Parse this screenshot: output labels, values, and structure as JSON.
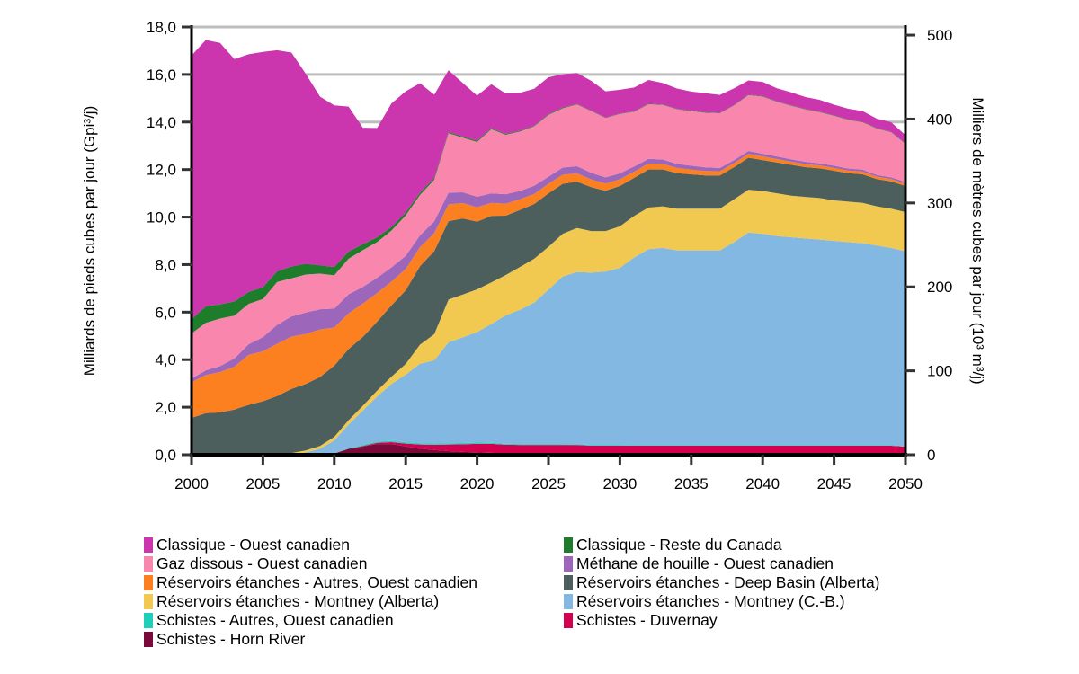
{
  "chart_data": {
    "type": "area",
    "stacked": true,
    "title": "",
    "xlabel": "",
    "ylabel": "Milliards de pieds cubes par jour (Gpi³/j)",
    "y2label": "Milliers de mètres cubes par jour (10³ m³/j)",
    "xlim": [
      2000,
      2050
    ],
    "ylim": [
      0,
      18
    ],
    "y2lim": [
      0,
      500
    ],
    "x_ticks": [
      "2000",
      "2005",
      "2010",
      "2015",
      "2020",
      "2025",
      "2030",
      "2035",
      "2040",
      "2045",
      "2050"
    ],
    "y_ticks": [
      "0,0",
      "2,0",
      "4,0",
      "6,0",
      "8,0",
      "10,0",
      "12,0",
      "14,0",
      "16,0",
      "18,0"
    ],
    "y2_ticks": [
      "0",
      "100",
      "200",
      "300",
      "400",
      "500"
    ],
    "grid": "horizontal",
    "legend_position": "bottom",
    "x": [
      2000,
      2001,
      2002,
      2003,
      2004,
      2005,
      2006,
      2007,
      2008,
      2009,
      2010,
      2011,
      2012,
      2013,
      2014,
      2015,
      2016,
      2017,
      2018,
      2019,
      2020,
      2021,
      2022,
      2023,
      2024,
      2025,
      2026,
      2027,
      2028,
      2029,
      2030,
      2031,
      2032,
      2033,
      2034,
      2035,
      2036,
      2037,
      2038,
      2039,
      2040,
      2041,
      2042,
      2043,
      2044,
      2045,
      2046,
      2047,
      2048,
      2049,
      2050
    ],
    "series": [
      {
        "name": "Schistes - Horn River",
        "color": "#7b0a3a",
        "values": [
          0,
          0,
          0,
          0,
          0,
          0,
          0,
          0,
          0,
          0,
          0.05,
          0.25,
          0.35,
          0.45,
          0.45,
          0.35,
          0.25,
          0.2,
          0.15,
          0.12,
          0.1,
          0.08,
          0.06,
          0.05,
          0.05,
          0.05,
          0.05,
          0.05,
          0.04,
          0.04,
          0.04,
          0.04,
          0.04,
          0.04,
          0.04,
          0.04,
          0.04,
          0.04,
          0.04,
          0.04,
          0.04,
          0.04,
          0.04,
          0.04,
          0.04,
          0.04,
          0.04,
          0.04,
          0.04,
          0.04,
          0.04
        ]
      },
      {
        "name": "Schistes - Duvernay",
        "color": "#d4004f",
        "values": [
          0,
          0,
          0,
          0,
          0,
          0,
          0,
          0,
          0,
          0,
          0,
          0,
          0.02,
          0.05,
          0.08,
          0.12,
          0.18,
          0.22,
          0.28,
          0.32,
          0.36,
          0.38,
          0.36,
          0.36,
          0.36,
          0.36,
          0.36,
          0.36,
          0.34,
          0.34,
          0.34,
          0.34,
          0.34,
          0.34,
          0.34,
          0.34,
          0.34,
          0.34,
          0.34,
          0.34,
          0.34,
          0.34,
          0.34,
          0.34,
          0.34,
          0.34,
          0.34,
          0.34,
          0.34,
          0.34,
          0.3
        ]
      },
      {
        "name": "Schistes - Autres, Ouest canadien",
        "color": "#1fcfb8",
        "values": [
          0,
          0,
          0,
          0,
          0,
          0,
          0,
          0,
          0,
          0,
          0,
          0.02,
          0.04,
          0.05,
          0.05,
          0.05,
          0.05,
          0.05,
          0.05,
          0.05,
          0.05,
          0.04,
          0.04,
          0.04,
          0.04,
          0.04,
          0.04,
          0.03,
          0.03,
          0.03,
          0.03,
          0.02,
          0.02,
          0.02,
          0.02,
          0.02,
          0.02,
          0.02,
          0.02,
          0.02,
          0.02,
          0.02,
          0.02,
          0.02,
          0.02,
          0.02,
          0.02,
          0.02,
          0.02,
          0.02,
          0.02
        ]
      },
      {
        "name": "Réservoirs étanches - Montney (C.-B.)",
        "color": "#82b8e1",
        "values": [
          0,
          0,
          0,
          0,
          0,
          0,
          0,
          0.02,
          0.1,
          0.25,
          0.55,
          1.0,
          1.45,
          1.9,
          2.4,
          2.85,
          3.35,
          3.5,
          4.25,
          4.45,
          4.65,
          5.0,
          5.4,
          5.65,
          5.95,
          6.5,
          7.05,
          7.25,
          7.25,
          7.3,
          7.45,
          7.9,
          8.25,
          8.3,
          8.2,
          8.2,
          8.2,
          8.2,
          8.55,
          8.95,
          8.9,
          8.8,
          8.75,
          8.7,
          8.65,
          8.6,
          8.55,
          8.5,
          8.4,
          8.3,
          8.2
        ]
      },
      {
        "name": "Réservoirs étanches - Montney (Alberta)",
        "color": "#f1c951",
        "values": [
          0,
          0,
          0,
          0,
          0,
          0,
          0.02,
          0.05,
          0.08,
          0.12,
          0.15,
          0.18,
          0.2,
          0.25,
          0.3,
          0.45,
          0.8,
          1.1,
          1.8,
          1.8,
          1.8,
          1.75,
          1.7,
          1.8,
          1.85,
          1.8,
          1.8,
          1.85,
          1.75,
          1.7,
          1.75,
          1.75,
          1.75,
          1.75,
          1.75,
          1.75,
          1.75,
          1.75,
          1.8,
          1.8,
          1.8,
          1.8,
          1.75,
          1.75,
          1.75,
          1.7,
          1.7,
          1.7,
          1.65,
          1.65,
          1.65
        ]
      },
      {
        "name": "Réservoirs étanches - Deep Basin (Alberta)",
        "color": "#4c5f5c",
        "values": [
          1.55,
          1.75,
          1.78,
          1.9,
          2.1,
          2.25,
          2.45,
          2.7,
          2.8,
          2.9,
          3.0,
          3.0,
          2.9,
          2.9,
          3.0,
          3.1,
          3.3,
          3.5,
          3.3,
          3.2,
          2.85,
          2.8,
          2.5,
          2.4,
          2.3,
          2.25,
          2.1,
          1.95,
          1.85,
          1.7,
          1.7,
          1.6,
          1.6,
          1.55,
          1.5,
          1.45,
          1.4,
          1.4,
          1.35,
          1.35,
          1.3,
          1.3,
          1.3,
          1.25,
          1.25,
          1.25,
          1.2,
          1.2,
          1.15,
          1.15,
          1.1
        ]
      },
      {
        "name": "Réservoirs étanches - Autres, Ouest canadien",
        "color": "#fd8020",
        "values": [
          1.5,
          1.6,
          1.7,
          1.8,
          2.1,
          2.1,
          2.2,
          2.2,
          2.1,
          2.0,
          1.6,
          1.5,
          1.4,
          1.2,
          1.0,
          0.9,
          0.8,
          0.75,
          0.7,
          0.65,
          0.6,
          0.55,
          0.5,
          0.45,
          0.42,
          0.4,
          0.38,
          0.35,
          0.32,
          0.3,
          0.28,
          0.26,
          0.25,
          0.24,
          0.22,
          0.2,
          0.19,
          0.18,
          0.17,
          0.16,
          0.15,
          0.14,
          0.13,
          0.13,
          0.12,
          0.12,
          0.11,
          0.11,
          0.1,
          0.1,
          0.1
        ]
      },
      {
        "name": "Méthane de houille - Ouest canadien",
        "color": "#9c67bb",
        "values": [
          0.15,
          0.2,
          0.25,
          0.35,
          0.45,
          0.6,
          0.8,
          0.85,
          0.9,
          0.85,
          0.8,
          0.8,
          0.7,
          0.65,
          0.6,
          0.55,
          0.5,
          0.5,
          0.5,
          0.45,
          0.45,
          0.4,
          0.4,
          0.35,
          0.35,
          0.3,
          0.3,
          0.3,
          0.28,
          0.26,
          0.25,
          0.22,
          0.2,
          0.18,
          0.17,
          0.16,
          0.15,
          0.14,
          0.13,
          0.12,
          0.12,
          0.11,
          0.1,
          0.1,
          0.09,
          0.09,
          0.08,
          0.08,
          0.07,
          0.07,
          0.07
        ]
      },
      {
        "name": "Gaz dissous - Ouest canadien",
        "color": "#f987ad",
        "values": [
          1.9,
          2.0,
          2.0,
          1.8,
          1.7,
          1.6,
          1.8,
          1.6,
          1.6,
          1.5,
          1.4,
          1.5,
          1.55,
          1.5,
          1.55,
          1.7,
          1.7,
          1.75,
          2.5,
          2.3,
          2.3,
          2.7,
          2.5,
          2.5,
          2.5,
          2.6,
          2.5,
          2.6,
          2.6,
          2.5,
          2.5,
          2.3,
          2.3,
          2.3,
          2.3,
          2.3,
          2.3,
          2.3,
          2.3,
          2.35,
          2.4,
          2.3,
          2.25,
          2.2,
          2.15,
          2.1,
          2.05,
          2.0,
          1.95,
          1.9,
          1.6
        ]
      },
      {
        "name": "Classique - Reste du Canada",
        "color": "#1e7d2a",
        "values": [
          0.6,
          0.7,
          0.6,
          0.6,
          0.5,
          0.5,
          0.45,
          0.5,
          0.45,
          0.35,
          0.35,
          0.3,
          0.25,
          0.2,
          0.15,
          0.12,
          0.1,
          0.08,
          0.05,
          0.05,
          0.05,
          0.04,
          0.04,
          0.03,
          0.03,
          0.03,
          0.03,
          0.02,
          0.02,
          0.02,
          0.02,
          0.02,
          0.02,
          0.02,
          0.02,
          0.02,
          0.02,
          0.02,
          0.02,
          0.02,
          0.02,
          0.02,
          0.02,
          0.02,
          0.02,
          0.02,
          0.02,
          0.02,
          0.02,
          0.02,
          0.02
        ]
      },
      {
        "name": "Classique - Ouest canadien",
        "color": "#cb35ad",
        "values": [
          11.1,
          11.2,
          11.0,
          10.2,
          10.0,
          9.9,
          9.3,
          9.0,
          8.0,
          7.1,
          6.8,
          6.1,
          4.9,
          4.6,
          5.2,
          5.1,
          4.6,
          3.5,
          2.6,
          2.25,
          1.9,
          1.85,
          1.7,
          1.6,
          1.55,
          1.55,
          1.4,
          1.3,
          1.25,
          1.1,
          1.0,
          1.0,
          1.0,
          0.9,
          0.85,
          0.8,
          0.8,
          0.75,
          0.7,
          0.6,
          0.6,
          0.55,
          0.55,
          0.5,
          0.5,
          0.45,
          0.45,
          0.45,
          0.4,
          0.4,
          0.35
        ]
      }
    ]
  },
  "legend": {
    "items": [
      {
        "label": "Classique - Ouest canadien",
        "color": "#cb35ad"
      },
      {
        "label": "Classique - Reste du Canada",
        "color": "#1e7d2a"
      },
      {
        "label": "Gaz dissous - Ouest canadien",
        "color": "#f987ad"
      },
      {
        "label": "Méthane de houille - Ouest canadien",
        "color": "#9c67bb"
      },
      {
        "label": "Réservoirs étanches - Autres, Ouest canadien",
        "color": "#fd8020"
      },
      {
        "label": "Réservoirs étanches - Deep Basin (Alberta)",
        "color": "#4c5f5c"
      },
      {
        "label": "Réservoirs étanches - Montney (Alberta)",
        "color": "#f1c951"
      },
      {
        "label": "Réservoirs étanches - Montney (C.-B.)",
        "color": "#82b8e1"
      },
      {
        "label": "Schistes - Autres, Ouest canadien",
        "color": "#1fcfb8"
      },
      {
        "label": "Schistes - Duvernay",
        "color": "#d4004f"
      },
      {
        "label": "Schistes - Horn River",
        "color": "#7b0a3a"
      }
    ]
  }
}
